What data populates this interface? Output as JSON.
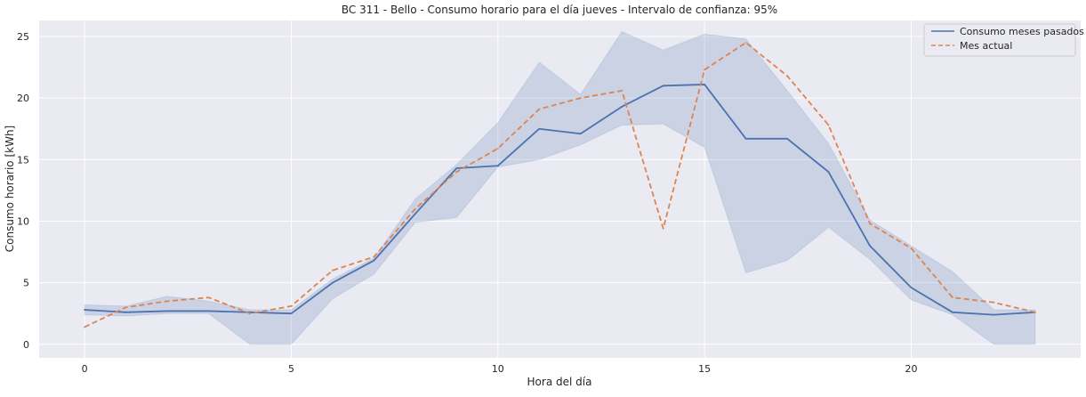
{
  "chart_data": {
    "type": "line",
    "title": "BC 311 - Bello - Consumo horario para el día jueves - Intervalo de confianza: 95%",
    "xlabel": "Hora del día",
    "ylabel": "Consumo horario [kWh]",
    "xlim": [
      -1.1,
      24.1
    ],
    "ylim": [
      -1.1,
      26.3
    ],
    "xticks": [
      0,
      5,
      10,
      15,
      20
    ],
    "yticks": [
      0,
      5,
      10,
      15,
      20,
      25
    ],
    "grid": true,
    "legend_position": "top-right",
    "x": [
      0,
      1,
      2,
      3,
      4,
      5,
      6,
      7,
      8,
      9,
      10,
      11,
      12,
      13,
      14,
      15,
      16,
      17,
      18,
      19,
      20,
      21,
      22,
      23
    ],
    "series": [
      {
        "name": "Consumo meses pasados",
        "color": "#4c72b0",
        "style": "solid",
        "values": [
          2.8,
          2.6,
          2.7,
          2.7,
          2.6,
          2.5,
          5.0,
          6.8,
          10.6,
          14.3,
          14.5,
          17.5,
          17.1,
          19.3,
          21.0,
          21.1,
          16.7,
          16.7,
          14.0,
          8.0,
          4.6,
          2.6,
          2.4,
          2.6
        ],
        "ci_lower": [
          2.4,
          2.3,
          2.5,
          2.5,
          0.0,
          0.0,
          3.7,
          5.7,
          9.9,
          10.3,
          14.4,
          15.0,
          16.2,
          17.8,
          17.9,
          16.0,
          5.8,
          6.8,
          9.5,
          6.9,
          3.6,
          2.4,
          0.0,
          0.0
        ],
        "ci_upper": [
          3.2,
          3.1,
          3.9,
          3.5,
          2.8,
          2.8,
          5.3,
          7.0,
          11.8,
          14.6,
          18.0,
          22.9,
          20.3,
          25.4,
          23.9,
          25.2,
          24.8,
          20.6,
          16.3,
          10.1,
          8.0,
          5.9,
          2.8,
          2.8
        ]
      },
      {
        "name": "Mes actual",
        "color": "#dd8452",
        "style": "dashed",
        "values": [
          1.4,
          3.0,
          3.5,
          3.8,
          2.5,
          3.1,
          6.0,
          7.1,
          11.0,
          14.0,
          15.9,
          19.1,
          20.0,
          20.6,
          9.4,
          22.3,
          24.5,
          21.8,
          17.8,
          9.8,
          7.8,
          3.8,
          3.4,
          2.6
        ]
      }
    ]
  }
}
